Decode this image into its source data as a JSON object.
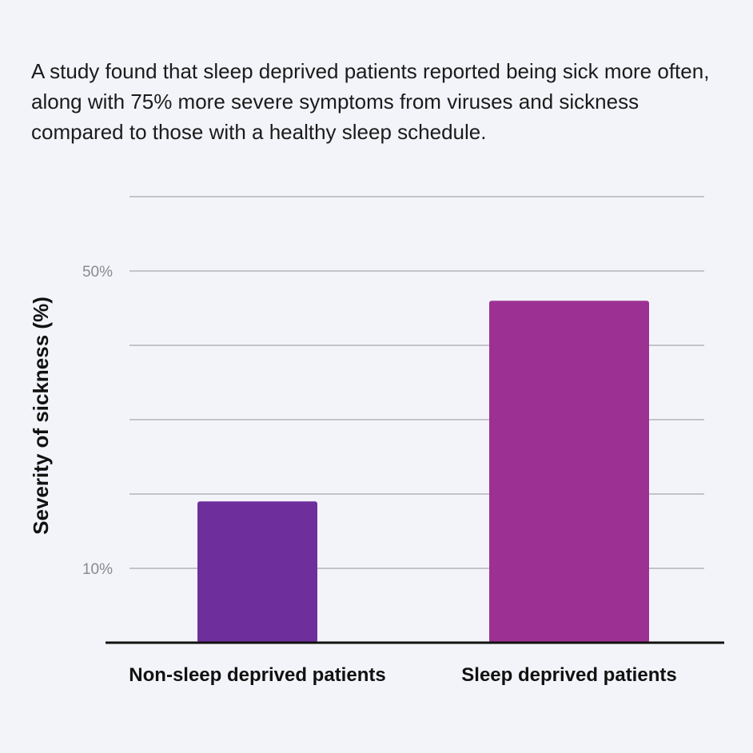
{
  "intro_text": "A study found that sleep deprived patients reported being sick more often, along with 75% more severe symptoms from viruses and sickness compared to those with a healthy sleep schedule.",
  "chart_data": {
    "type": "bar",
    "title": "",
    "ylabel": "Severity of sickness (%)",
    "xlabel": "",
    "categories": [
      "Non-sleep deprived patients",
      "Sleep deprived patients"
    ],
    "values": [
      19,
      46
    ],
    "colors": [
      "#6e2f9c",
      "#9c3193"
    ],
    "ylim": [
      0,
      60
    ],
    "gridlines": [
      10,
      20,
      30,
      40,
      50,
      60
    ],
    "tick_labels": [
      {
        "value": 50,
        "label": "50%"
      },
      {
        "value": 10,
        "label": "10%"
      }
    ],
    "grid": true,
    "legend": "none"
  }
}
